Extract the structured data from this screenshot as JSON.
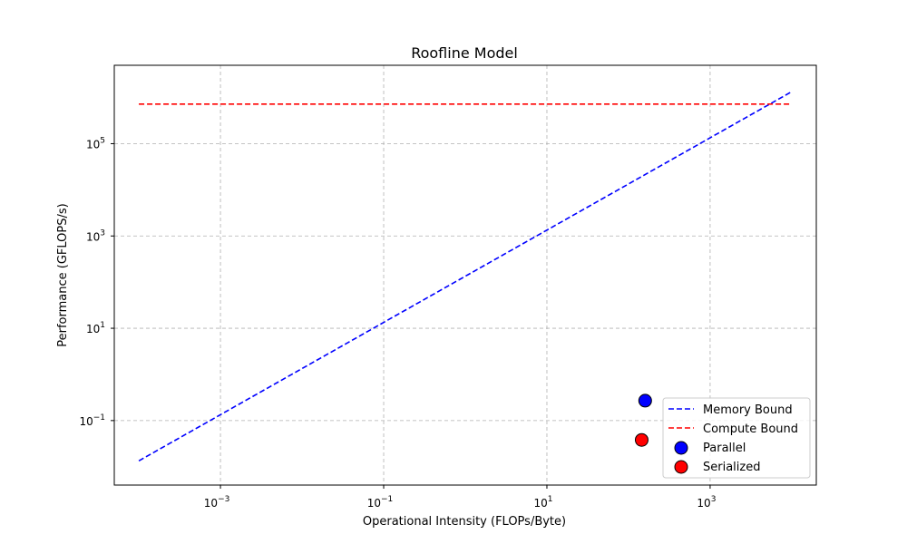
{
  "chart_data": {
    "type": "line",
    "title": "Roofline Model",
    "xlabel": "Operational Intensity (FLOPs/Byte)",
    "ylabel": "Performance (GFLOPS/s)",
    "xscale": "log",
    "yscale": "log",
    "xlim": [
      5e-05,
      20000
    ],
    "ylim": [
      0.004,
      5000000
    ],
    "grid": true,
    "legend_position": "lower right",
    "x_ticks": [
      {
        "value": 0.001,
        "base": "10",
        "exp": "−3"
      },
      {
        "value": 0.1,
        "base": "10",
        "exp": "−1"
      },
      {
        "value": 10,
        "base": "10",
        "exp": "1"
      },
      {
        "value": 1000,
        "base": "10",
        "exp": "3"
      }
    ],
    "y_ticks": [
      {
        "value": 0.1,
        "base": "10",
        "exp": "−1"
      },
      {
        "value": 10,
        "base": "10",
        "exp": "1"
      },
      {
        "value": 1000,
        "base": "10",
        "exp": "3"
      },
      {
        "value": 100000,
        "base": "10",
        "exp": "5"
      }
    ],
    "series": [
      {
        "name": "Memory Bound",
        "kind": "line",
        "style": "dashed",
        "color": "#0000ff",
        "x": [
          0.0001,
          10000
        ],
        "y": [
          0.0134,
          1340000
        ]
      },
      {
        "name": "Compute Bound",
        "kind": "line",
        "style": "dashed",
        "color": "#ff0000",
        "x": [
          0.0001,
          10000
        ],
        "y": [
          720000,
          720000
        ]
      },
      {
        "name": "Parallel",
        "kind": "scatter",
        "color": "#0000ff",
        "x": [
          160
        ],
        "y": [
          0.27
        ]
      },
      {
        "name": "Serialized",
        "kind": "scatter",
        "color": "#ff0000",
        "x": [
          145
        ],
        "y": [
          0.038
        ]
      }
    ]
  }
}
